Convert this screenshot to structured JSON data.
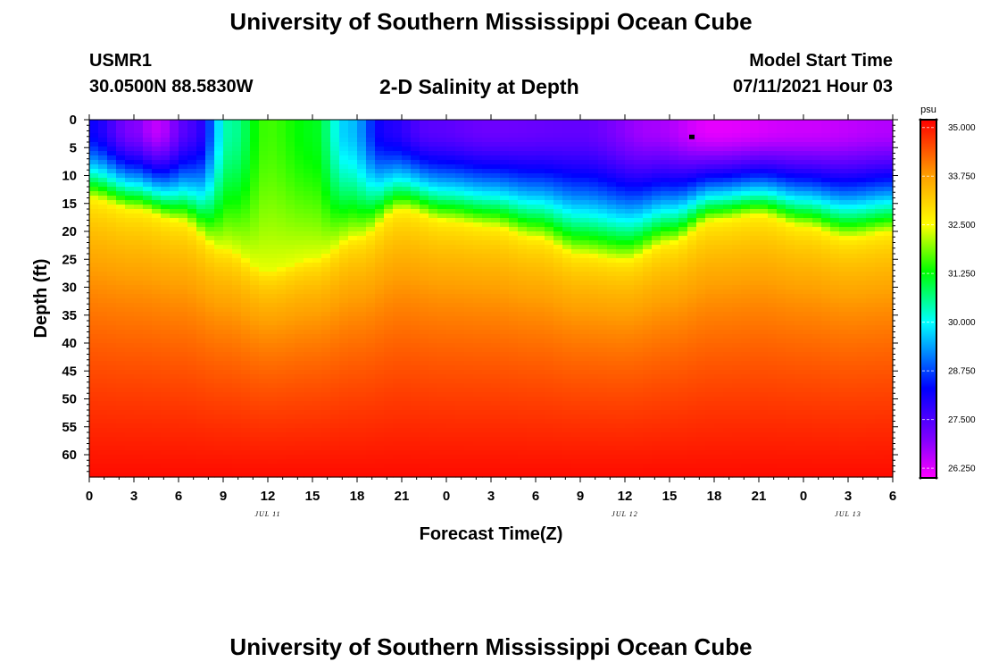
{
  "header": {
    "title": "University of Southern Mississippi Ocean Cube",
    "station_id": "USMR1",
    "coordinates": "30.0500N  88.5830W",
    "plot_title": "2-D Salinity at Depth",
    "model_start_label": "Model Start Time",
    "model_start_value": "07/11/2021 Hour 03"
  },
  "footer": {
    "title": "University of Southern Mississippi Ocean Cube"
  },
  "chart_data": {
    "type": "heatmap",
    "title": "2-D Salinity at Depth",
    "xlabel": "Forecast Time(Z)",
    "ylabel": "Depth (ft)",
    "x_ticks": [
      "0",
      "3",
      "6",
      "9",
      "12",
      "15",
      "18",
      "21",
      "0",
      "3",
      "6",
      "9",
      "12",
      "15",
      "18",
      "21",
      "0",
      "3",
      "6"
    ],
    "x_range_hours": [
      0,
      54
    ],
    "date_labels": [
      {
        "label": "JUL 11",
        "hour": 12
      },
      {
        "label": "JUL 12",
        "hour": 36
      },
      {
        "label": "JUL 13",
        "hour": 51
      }
    ],
    "y_ticks": [
      "0",
      "5",
      "10",
      "15",
      "20",
      "25",
      "30",
      "35",
      "40",
      "45",
      "50",
      "55",
      "60"
    ],
    "ylim": [
      0,
      64
    ],
    "colorbar": {
      "unit": "psu",
      "range": [
        26.0,
        35.2
      ],
      "tick_labels": [
        "35.000",
        "33.750",
        "32.500",
        "31.250",
        "30.000",
        "28.750",
        "27.500",
        "26.250"
      ],
      "color_stops": [
        {
          "value": 26.0,
          "color": "#ff00ff"
        },
        {
          "value": 27.0,
          "color": "#8000ff"
        },
        {
          "value": 28.3,
          "color": "#0000ff"
        },
        {
          "value": 30.0,
          "color": "#00ffff"
        },
        {
          "value": 31.3,
          "color": "#00ff00"
        },
        {
          "value": 32.5,
          "color": "#ffff00"
        },
        {
          "value": 33.75,
          "color": "#ffa000"
        },
        {
          "value": 35.2,
          "color": "#ff0000"
        }
      ]
    },
    "halocline_depth_ft_by_hour": [
      {
        "hour": 0,
        "depth": 14
      },
      {
        "hour": 3,
        "depth": 16
      },
      {
        "hour": 6,
        "depth": 18
      },
      {
        "hour": 9,
        "depth": 23
      },
      {
        "hour": 12,
        "depth": 27
      },
      {
        "hour": 15,
        "depth": 25
      },
      {
        "hour": 18,
        "depth": 21
      },
      {
        "hour": 21,
        "depth": 16
      },
      {
        "hour": 24,
        "depth": 18
      },
      {
        "hour": 27,
        "depth": 19
      },
      {
        "hour": 30,
        "depth": 21
      },
      {
        "hour": 33,
        "depth": 24
      },
      {
        "hour": 36,
        "depth": 25
      },
      {
        "hour": 39,
        "depth": 22
      },
      {
        "hour": 42,
        "depth": 18
      },
      {
        "hour": 45,
        "depth": 17
      },
      {
        "hour": 48,
        "depth": 19
      },
      {
        "hour": 51,
        "depth": 21
      },
      {
        "hour": 54,
        "depth": 20
      }
    ],
    "surface_salinity_psu_by_hour": [
      {
        "hour": 0,
        "value": 28.2
      },
      {
        "hour": 3,
        "value": 27.0
      },
      {
        "hour": 4.5,
        "value": 26.5
      },
      {
        "hour": 7,
        "value": 27.6
      },
      {
        "hour": 9.5,
        "value": 30.5
      },
      {
        "hour": 12,
        "value": 31.6
      },
      {
        "hour": 15,
        "value": 31.2
      },
      {
        "hour": 17.5,
        "value": 29.6
      },
      {
        "hour": 20,
        "value": 28.0
      },
      {
        "hour": 23,
        "value": 27.4
      },
      {
        "hour": 27,
        "value": 27.2
      },
      {
        "hour": 33,
        "value": 27.3
      },
      {
        "hour": 38,
        "value": 26.7
      },
      {
        "hour": 42,
        "value": 26.2
      },
      {
        "hour": 48,
        "value": 26.4
      },
      {
        "hour": 54,
        "value": 26.6
      }
    ],
    "bottom_salinity_psu": 35.1,
    "marker": {
      "hour": 40.5,
      "depth": 3
    }
  }
}
